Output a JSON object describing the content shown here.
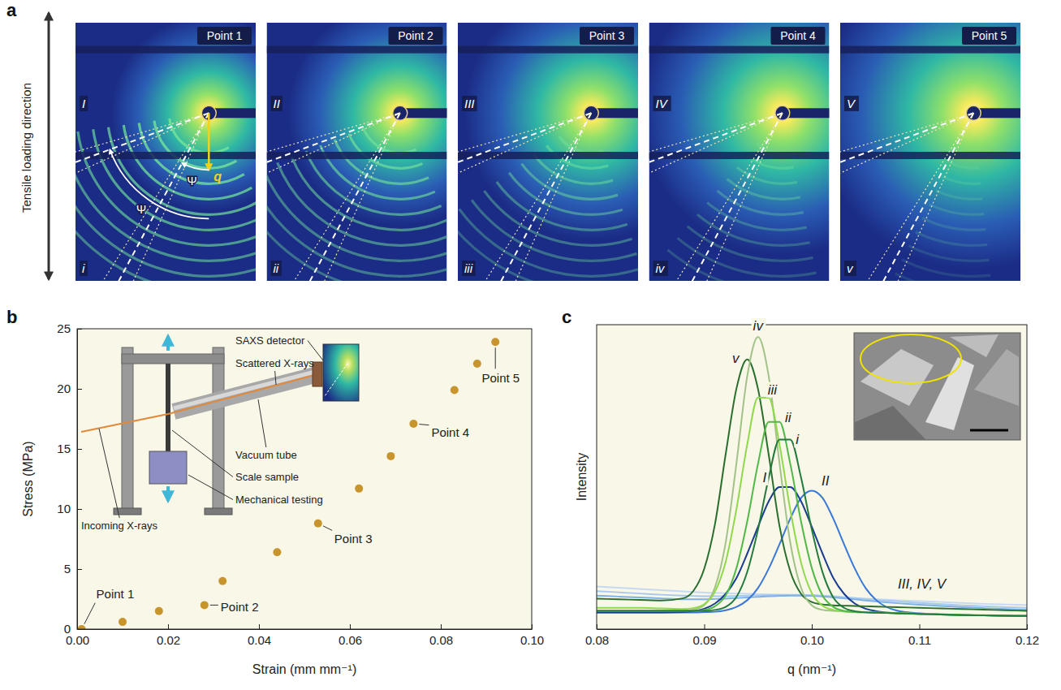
{
  "chart_data": [
    {
      "type": "image_panels",
      "panel_label": "a",
      "arrow_label": "Tensile loading direction",
      "angle_symbol": "Ψ",
      "vector_label": "q",
      "panels": [
        {
          "title": "Point 1",
          "upper_label": "I",
          "lower_label": "i"
        },
        {
          "title": "Point 2",
          "upper_label": "II",
          "lower_label": "ii"
        },
        {
          "title": "Point 3",
          "upper_label": "III",
          "lower_label": "iii"
        },
        {
          "title": "Point 4",
          "upper_label": "IV",
          "lower_label": "iv"
        },
        {
          "title": "Point 5",
          "upper_label": "V",
          "lower_label": "v"
        }
      ]
    },
    {
      "type": "scatter",
      "panel_label": "b",
      "xlabel": "Strain (mm mm⁻¹)",
      "ylabel": "Stress (MPa)",
      "x": [
        0.001,
        0.01,
        0.018,
        0.028,
        0.032,
        0.044,
        0.053,
        0.062,
        0.069,
        0.074,
        0.083,
        0.088,
        0.092
      ],
      "values": [
        0,
        0.6,
        1.5,
        2.0,
        4.0,
        6.4,
        8.8,
        11.7,
        14.4,
        17.1,
        19.9,
        22.1,
        23.9
      ],
      "point_labels": [
        "Point 1",
        null,
        null,
        "Point 2",
        null,
        null,
        "Point 3",
        null,
        null,
        "Point 4",
        null,
        null,
        "Point 5"
      ],
      "color": "#c8952c",
      "marker": "circle",
      "xlim": [
        0,
        0.1
      ],
      "ylim": [
        0,
        25
      ],
      "xticks": [
        {
          "value": 0,
          "label": "0.00"
        },
        {
          "value": 0.02,
          "label": "0.02"
        },
        {
          "value": 0.04,
          "label": "0.04"
        },
        {
          "value": 0.06,
          "label": "0.06"
        },
        {
          "value": 0.08,
          "label": "0.08"
        },
        {
          "value": 0.1,
          "label": "0.10"
        }
      ],
      "yticks": [
        0,
        5,
        10,
        15,
        20,
        25
      ],
      "inset_labels": [
        "SAXS detector",
        "Scattered X-rays",
        "Incoming X-rays",
        "Vacuum tube",
        "Scale sample",
        "Mechanical testing"
      ]
    },
    {
      "type": "line",
      "panel_label": "c",
      "xlabel": "q (nm⁻¹)",
      "ylabel": "Intensity",
      "tick_labels": "x",
      "xlim": [
        0.08,
        0.12
      ],
      "ylim": [
        0,
        100
      ],
      "xticks": [
        {
          "value": 0.08,
          "label": "0.08"
        },
        {
          "value": 0.09,
          "label": "0.09"
        },
        {
          "value": 0.1,
          "label": "0.10"
        },
        {
          "value": 0.11,
          "label": "0.11"
        },
        {
          "value": 0.12,
          "label": "0.12"
        }
      ],
      "x": [
        0.08,
        0.082,
        0.084,
        0.086,
        0.088,
        0.089,
        0.09,
        0.091,
        0.092,
        0.093,
        0.094,
        0.095,
        0.096,
        0.097,
        0.098,
        0.099,
        0.1,
        0.101,
        0.102,
        0.103,
        0.104,
        0.105,
        0.106,
        0.108,
        0.11,
        0.112,
        0.114,
        0.116,
        0.118,
        0.12
      ],
      "series": [
        {
          "label": "i",
          "color": "#237a3d",
          "values": [
            6,
            6,
            6,
            6,
            6,
            6,
            6,
            6.3,
            7.3,
            10.6,
            18.8,
            32.7,
            49.8,
            62.3,
            62.3,
            49.8,
            32.7,
            18.7,
            10.4,
            7,
            5.9,
            5.5,
            5.4,
            5.2,
            5,
            4.8,
            4.6,
            4.5,
            4.4,
            4.3
          ]
        },
        {
          "label": "ii",
          "color": "#52b848",
          "values": [
            6,
            6,
            6,
            6,
            6,
            6,
            6.3,
            7.5,
            11.1,
            20.1,
            35.4,
            54.3,
            68.1,
            68.1,
            54.3,
            35.4,
            20.1,
            11,
            7.3,
            6,
            5.6,
            5.5,
            5.4,
            5.2,
            5,
            4.8,
            4.6,
            4.5,
            4.4,
            4.3
          ]
        },
        {
          "label": "iii",
          "color": "#8fd94a",
          "values": [
            7,
            7,
            7,
            6.8,
            6.6,
            6.9,
            8.2,
            12.3,
            22.2,
            39.5,
            60.7,
            76.1,
            76,
            60.6,
            39.2,
            21.9,
            11.8,
            7.7,
            6.3,
            5.8,
            5.7,
            5.6,
            5.5,
            5.3,
            5.1,
            4.9,
            4.7,
            4.6,
            4.5,
            4.4
          ]
        },
        {
          "label": "iv",
          "color": "#a3c289",
          "values": [
            6,
            6,
            6,
            6,
            6,
            6.4,
            7.9,
            13.7,
            28.5,
            54.6,
            83.1,
            96,
            83,
            54.5,
            28.4,
            13.6,
            7.8,
            6.3,
            6,
            5.8,
            5.6,
            5.5,
            5.4,
            5.2,
            5,
            4.8,
            4.6,
            4.5,
            4.4,
            4.3
          ]
        },
        {
          "label": "v",
          "color": "#2a6e2e",
          "values": [
            10,
            9.8,
            9.6,
            9.4,
            10.1,
            12.6,
            19.8,
            34.5,
            57.6,
            79.1,
            88.6,
            78.9,
            57.2,
            33.9,
            19,
            11.6,
            8.9,
            8.1,
            7.8,
            7.7,
            7.6,
            7.5,
            7.4,
            7.2,
            7,
            6.8,
            6.6,
            6.4,
            6.2,
            6
          ]
        },
        {
          "label": "I",
          "color": "#1b3d8f",
          "values": [
            5.5,
            5.5,
            5.5,
            5.5,
            5.6,
            5.9,
            6.7,
            8.4,
            11.6,
            16.8,
            24.8,
            33.6,
            42,
            46.7,
            46.7,
            42,
            33.6,
            24.8,
            16.8,
            11.6,
            8.4,
            6.7,
            5.9,
            5.2,
            5,
            4.8,
            4.6,
            4.5,
            4.4,
            4.3
          ]
        },
        {
          "label": "II",
          "color": "#3a78d8",
          "values": [
            5.5,
            5.5,
            5.5,
            5.5,
            5.5,
            5.5,
            5.6,
            5.7,
            6.2,
            7.3,
            9.5,
            13.5,
            19.9,
            27.9,
            36.3,
            43.1,
            45.5,
            43.1,
            36.3,
            27.9,
            19.9,
            13.5,
            9.5,
            6,
            5.2,
            4.9,
            4.7,
            4.5,
            4.4,
            4.3
          ]
        },
        {
          "label": "III, IV, V",
          "color": "#7fb0e6",
          "values": [
            11,
            10.7,
            10.4,
            10.1,
            9.8,
            9.8,
            9.8,
            9.9,
            10,
            10.2,
            10.4,
            10.6,
            10.8,
            10.9,
            11,
            11,
            10.9,
            10.7,
            10.4,
            10.1,
            9.8,
            9.4,
            9.1,
            8.5,
            8,
            7.6,
            7.2,
            6.9,
            6.6,
            6.3
          ]
        },
        {
          "label": null,
          "color": "#a8c9ee",
          "values": [
            12.5,
            12.1,
            11.7,
            11.3,
            11,
            10.9,
            10.8,
            10.8,
            10.8,
            10.9,
            11,
            11.1,
            11.2,
            11.3,
            11.3,
            11.3,
            11.2,
            11,
            10.8,
            10.5,
            10.2,
            9.9,
            9.6,
            9.1,
            8.6,
            8.2,
            7.8,
            7.5,
            7.2,
            7
          ]
        },
        {
          "label": null,
          "color": "#c5daf2",
          "values": [
            14,
            13.6,
            13.2,
            12.8,
            12.4,
            12.2,
            12,
            11.9,
            11.8,
            11.7,
            11.6,
            11.5,
            11.4,
            11.3,
            11.2,
            11.1,
            11,
            10.8,
            10.6,
            10.4,
            10.2,
            10,
            9.8,
            9.5,
            9.2,
            8.9,
            8.6,
            8.3,
            8.1,
            7.9
          ]
        }
      ]
    }
  ]
}
